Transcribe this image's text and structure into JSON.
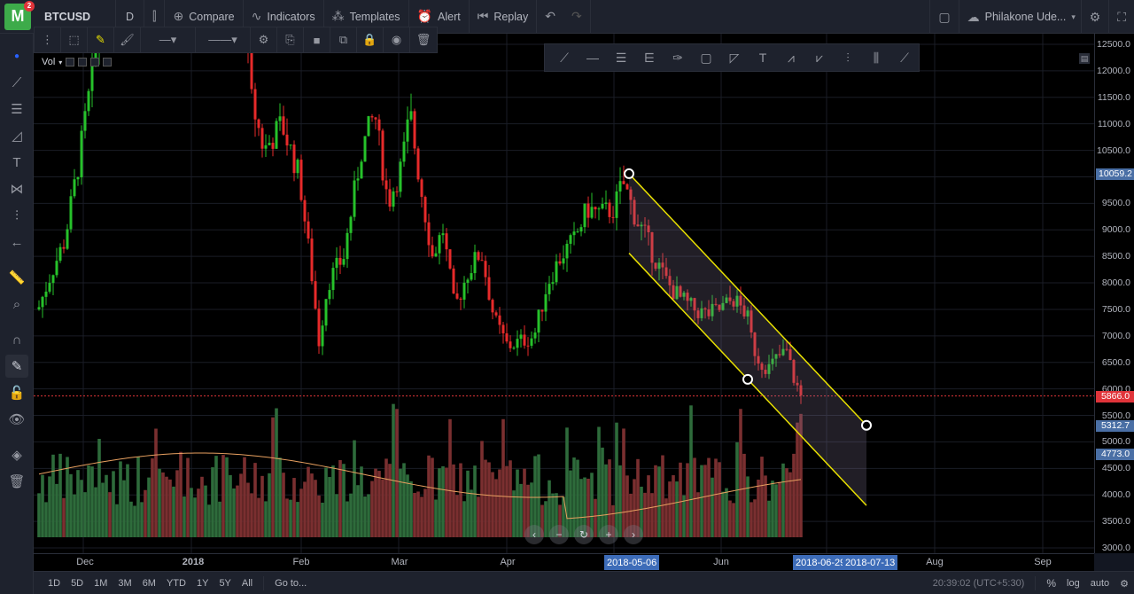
{
  "topbar": {
    "logo_letter": "M",
    "logo_badge": "2",
    "symbol": "BTCUSD",
    "interval": "D",
    "compare_label": "Compare",
    "indicators_label": "Indicators",
    "templates_label": "Templates",
    "alert_label": "Alert",
    "replay_label": "Replay",
    "user_name": "Philakone Ude..."
  },
  "legend": {
    "indicator": "Vol"
  },
  "price_axis": {
    "ticks": [
      "12500.0",
      "12000.0",
      "11500.0",
      "11000.0",
      "10500.0",
      "10000.0",
      "9500.0",
      "9000.0",
      "8500.0",
      "8000.0",
      "7500.0",
      "7000.0",
      "6500.0",
      "6000.0",
      "5500.0",
      "5000.0",
      "4500.0",
      "4000.0",
      "3500.0",
      "3000.0"
    ],
    "tag_high": "10059.2",
    "tag_last": "5866.0",
    "tag_channel_end": "5312.7",
    "tag_channel_low": "4773.0",
    "tag_high_color": "#4a6fa5",
    "tag_last_color": "#e0343a",
    "tag_channel_color": "#4a6fa5"
  },
  "time_axis": {
    "ticks": [
      "Dec",
      "2018",
      "Feb",
      "Mar",
      "Apr",
      "Jun",
      "Aug",
      "Sep"
    ],
    "range_start": "2018-05-06",
    "range_mid": "2018-06-29",
    "range_end": "2018-07-13"
  },
  "bottombar": {
    "ranges": [
      "1D",
      "5D",
      "1M",
      "3M",
      "6M",
      "YTD",
      "1Y",
      "5Y",
      "All"
    ],
    "goto_label": "Go to...",
    "clock": "20:39:02 (UTC+5:30)",
    "percent_label": "%",
    "log_label": "log",
    "auto_label": "auto"
  },
  "chart_data": {
    "type": "candlestick",
    "symbol": "BTCUSD",
    "interval": "D",
    "price_range": [
      3000,
      12500
    ],
    "last_price": 5866.0,
    "channel": {
      "upper": {
        "from": [
          "2018-05-06",
          10059.2
        ],
        "to": [
          "2018-07-13",
          5312.7
        ]
      },
      "lower": {
        "from": [
          "2018-05-06",
          8560
        ],
        "to": [
          "2018-07-13",
          3800
        ]
      },
      "anchor": [
        "2018-06-18",
        6180
      ]
    },
    "colors": {
      "up": "#26c12a",
      "down": "#e62a2a",
      "volume_up": "#2e6b3b",
      "volume_down": "#7a2f30",
      "channel_line": "#e8e000",
      "channel_fill": "rgba(130,120,150,0.25)",
      "vol_ma": "#e8a060",
      "last_line": "#e0343a"
    }
  }
}
